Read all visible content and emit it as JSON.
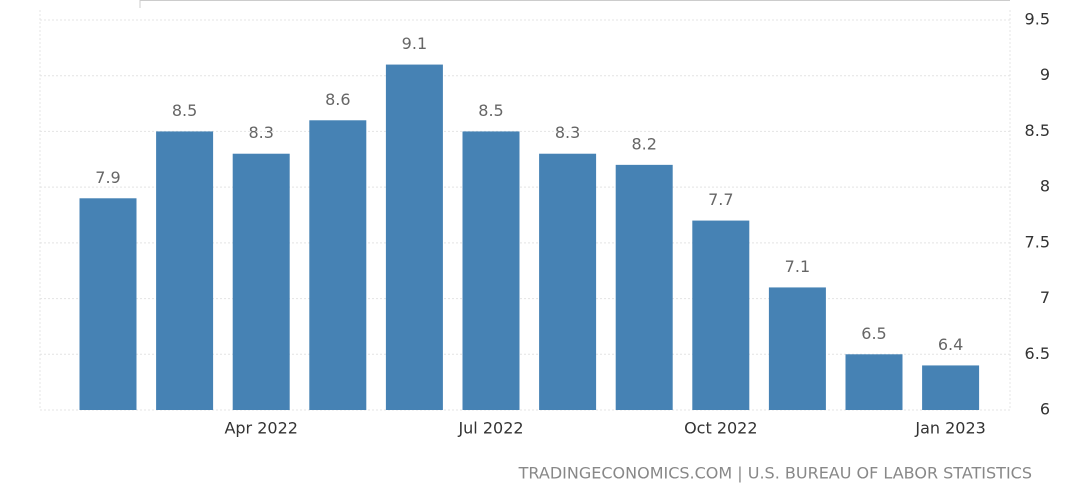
{
  "chart_data": {
    "type": "bar",
    "source": "TRADINGECONOMICS.COM | U.S. BUREAU OF LABOR STATISTICS",
    "categories": [
      null,
      null,
      "Apr 2022",
      null,
      null,
      "Jul 2022",
      null,
      null,
      "Oct 2022",
      null,
      null,
      "Jan 2023"
    ],
    "values": [
      7.9,
      8.5,
      8.3,
      8.6,
      9.1,
      8.5,
      8.3,
      8.2,
      7.7,
      7.1,
      6.5,
      6.4
    ],
    "color": "#4682b4",
    "ylim": [
      6,
      9.5
    ],
    "yticks": [
      6,
      6.5,
      7,
      7.5,
      8,
      8.5,
      9,
      9.5
    ],
    "grid": true
  }
}
